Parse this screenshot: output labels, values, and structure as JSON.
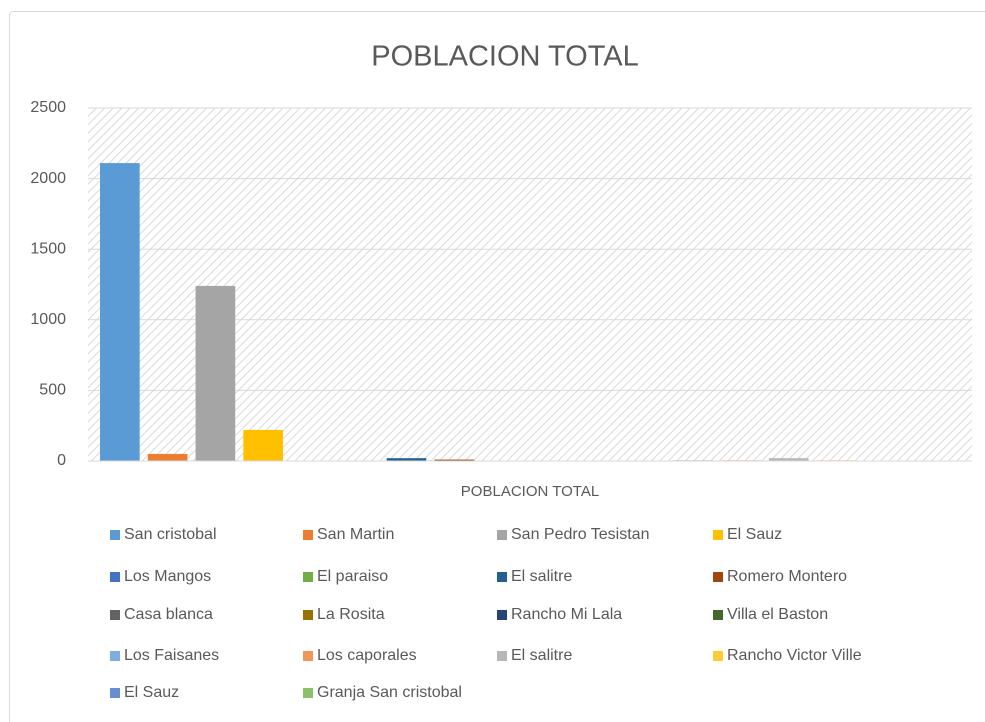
{
  "chart_data": {
    "type": "bar",
    "title": "POBLACION TOTAL",
    "categories": [
      "POBLACION TOTAL"
    ],
    "series": [
      {
        "name": "San cristobal",
        "color": "#5b9bd5",
        "values": [
          2110
        ]
      },
      {
        "name": "San Martin",
        "color": "#ed7d31",
        "values": [
          50
        ]
      },
      {
        "name": "San Pedro Tesistan",
        "color": "#a5a5a5",
        "values": [
          1240
        ]
      },
      {
        "name": "El Sauz",
        "color": "#ffc000",
        "values": [
          220
        ]
      },
      {
        "name": "Los Mangos",
        "color": "#4472c4",
        "values": [
          0
        ]
      },
      {
        "name": "El paraiso",
        "color": "#70ad47",
        "values": [
          0
        ]
      },
      {
        "name": "El salitre",
        "color": "#255e91",
        "values": [
          20
        ]
      },
      {
        "name": "Romero Montero",
        "color": "#9e480e",
        "values": [
          10
        ]
      },
      {
        "name": "Casa blanca",
        "color": "#636363",
        "values": [
          0
        ]
      },
      {
        "name": "La Rosita",
        "color": "#997300",
        "values": [
          0
        ]
      },
      {
        "name": "Rancho Mi Lala",
        "color": "#264478",
        "values": [
          0
        ]
      },
      {
        "name": "Villa el Baston",
        "color": "#43682b",
        "values": [
          0
        ]
      },
      {
        "name": "Los Faisanes",
        "color": "#7cafdd",
        "values": [
          5
        ]
      },
      {
        "name": "Los caporales",
        "color": "#f1975a",
        "values": [
          5
        ]
      },
      {
        "name": "El salitre",
        "color": "#b7b7b7",
        "values": [
          20
        ]
      },
      {
        "name": "Rancho Victor Ville",
        "color": "#ffcd33",
        "values": [
          5
        ]
      },
      {
        "name": "El Sauz",
        "color": "#698ed0",
        "values": [
          0
        ]
      },
      {
        "name": "Granja San cristobal",
        "color": "#8cc168",
        "values": [
          0
        ]
      }
    ],
    "ylim": [
      0,
      2500
    ],
    "yticks": [
      0,
      500,
      1000,
      1500,
      2000,
      2500
    ],
    "grid": true,
    "legend": "bottom"
  }
}
